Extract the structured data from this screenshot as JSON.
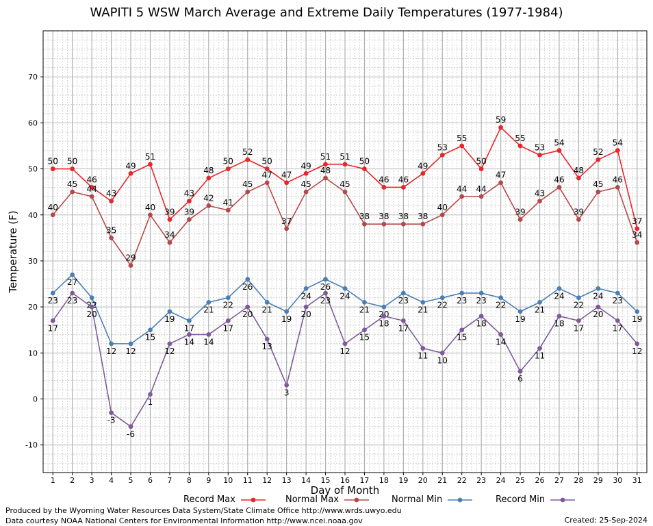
{
  "title": "WAPITI 5 WSW March Average and Extreme Daily Temperatures (1977-1984)",
  "footer": {
    "line1": "Produced by the Wyoming Water Resources Data System/State Climate Office http://www.wrds.uwyo.edu",
    "line2": "Data courtesy NOAA National Centers for Environmental Information http://www.ncei.noaa.gov",
    "created": "Created:  25-Sep-2024"
  },
  "chart_data": {
    "type": "line",
    "title": "WAPITI 5 WSW March Average and Extreme Daily Temperatures (1977-1984)",
    "xlabel": "Day of Month",
    "ylabel": "Temperature (F)",
    "x": [
      1,
      2,
      3,
      4,
      5,
      6,
      7,
      8,
      9,
      10,
      11,
      12,
      13,
      14,
      15,
      16,
      17,
      18,
      19,
      20,
      21,
      22,
      23,
      24,
      25,
      26,
      27,
      28,
      29,
      30,
      31
    ],
    "xlim": [
      0.5,
      31.5
    ],
    "ylim": [
      -16,
      80
    ],
    "yticks": [
      -10,
      0,
      10,
      20,
      30,
      40,
      50,
      60,
      70
    ],
    "grid": true,
    "legend_position": "bottom",
    "series": [
      {
        "name": "Record Max",
        "color": "#e8252a",
        "values": [
          50,
          50,
          46,
          43,
          49,
          51,
          39,
          43,
          48,
          50,
          52,
          50,
          47,
          49,
          51,
          51,
          50,
          46,
          46,
          49,
          53,
          55,
          50,
          59,
          55,
          53,
          54,
          48,
          52,
          54,
          37
        ]
      },
      {
        "name": "Normal Max",
        "color": "#b5494a",
        "values": [
          40,
          45,
          44,
          35,
          29,
          40,
          34,
          39,
          42,
          41,
          45,
          47,
          37,
          45,
          48,
          45,
          38,
          38,
          38,
          38,
          40,
          44,
          44,
          47,
          39,
          43,
          46,
          39,
          45,
          46,
          34
        ]
      },
      {
        "name": "Normal Min",
        "color": "#4a7fb5",
        "values": [
          23,
          27,
          22,
          12,
          12,
          15,
          19,
          17,
          21,
          22,
          26,
          21,
          19,
          24,
          26,
          24,
          21,
          20,
          23,
          21,
          22,
          23,
          23,
          22,
          19,
          21,
          24,
          22,
          24,
          23,
          19
        ]
      },
      {
        "name": "Record Min",
        "color": "#7e5a9b",
        "values": [
          17,
          23,
          20,
          -3,
          -6,
          1,
          12,
          14,
          14,
          17,
          20,
          13,
          3,
          20,
          23,
          12,
          15,
          18,
          17,
          11,
          10,
          15,
          18,
          14,
          6,
          11,
          18,
          17,
          20,
          17,
          12
        ]
      }
    ]
  }
}
